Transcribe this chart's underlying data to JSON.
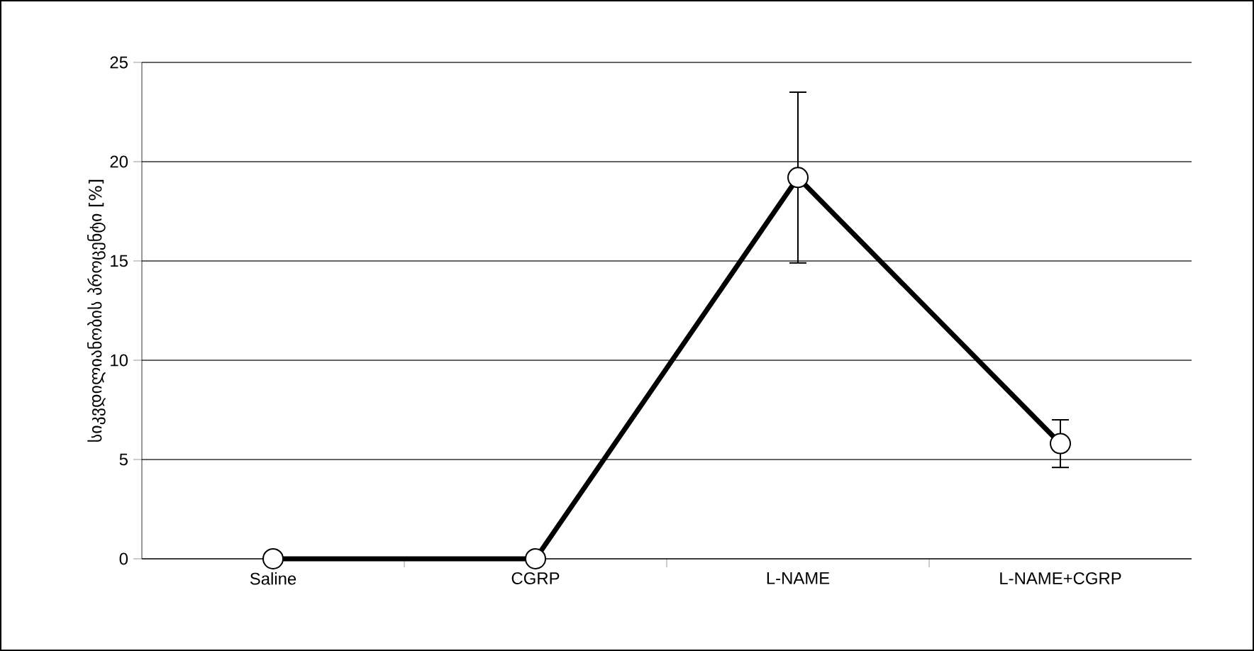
{
  "chart_data": {
    "type": "line",
    "ylabel": "სიკვდილიანობის პროცენტი [%]",
    "categories": [
      "Saline",
      "CGRP",
      "L-NAME",
      "L-NAME+CGRP"
    ],
    "series": [
      {
        "color": "#000000",
        "values": [
          0,
          0,
          19.2,
          5.8
        ],
        "errors": [
          null,
          null,
          4.3,
          1.2
        ]
      }
    ],
    "ylim": [
      0,
      25
    ],
    "yticks": [
      0,
      5,
      10,
      15,
      20,
      25
    ],
    "grid": "y",
    "marker": "circle",
    "line_style": "solid"
  }
}
